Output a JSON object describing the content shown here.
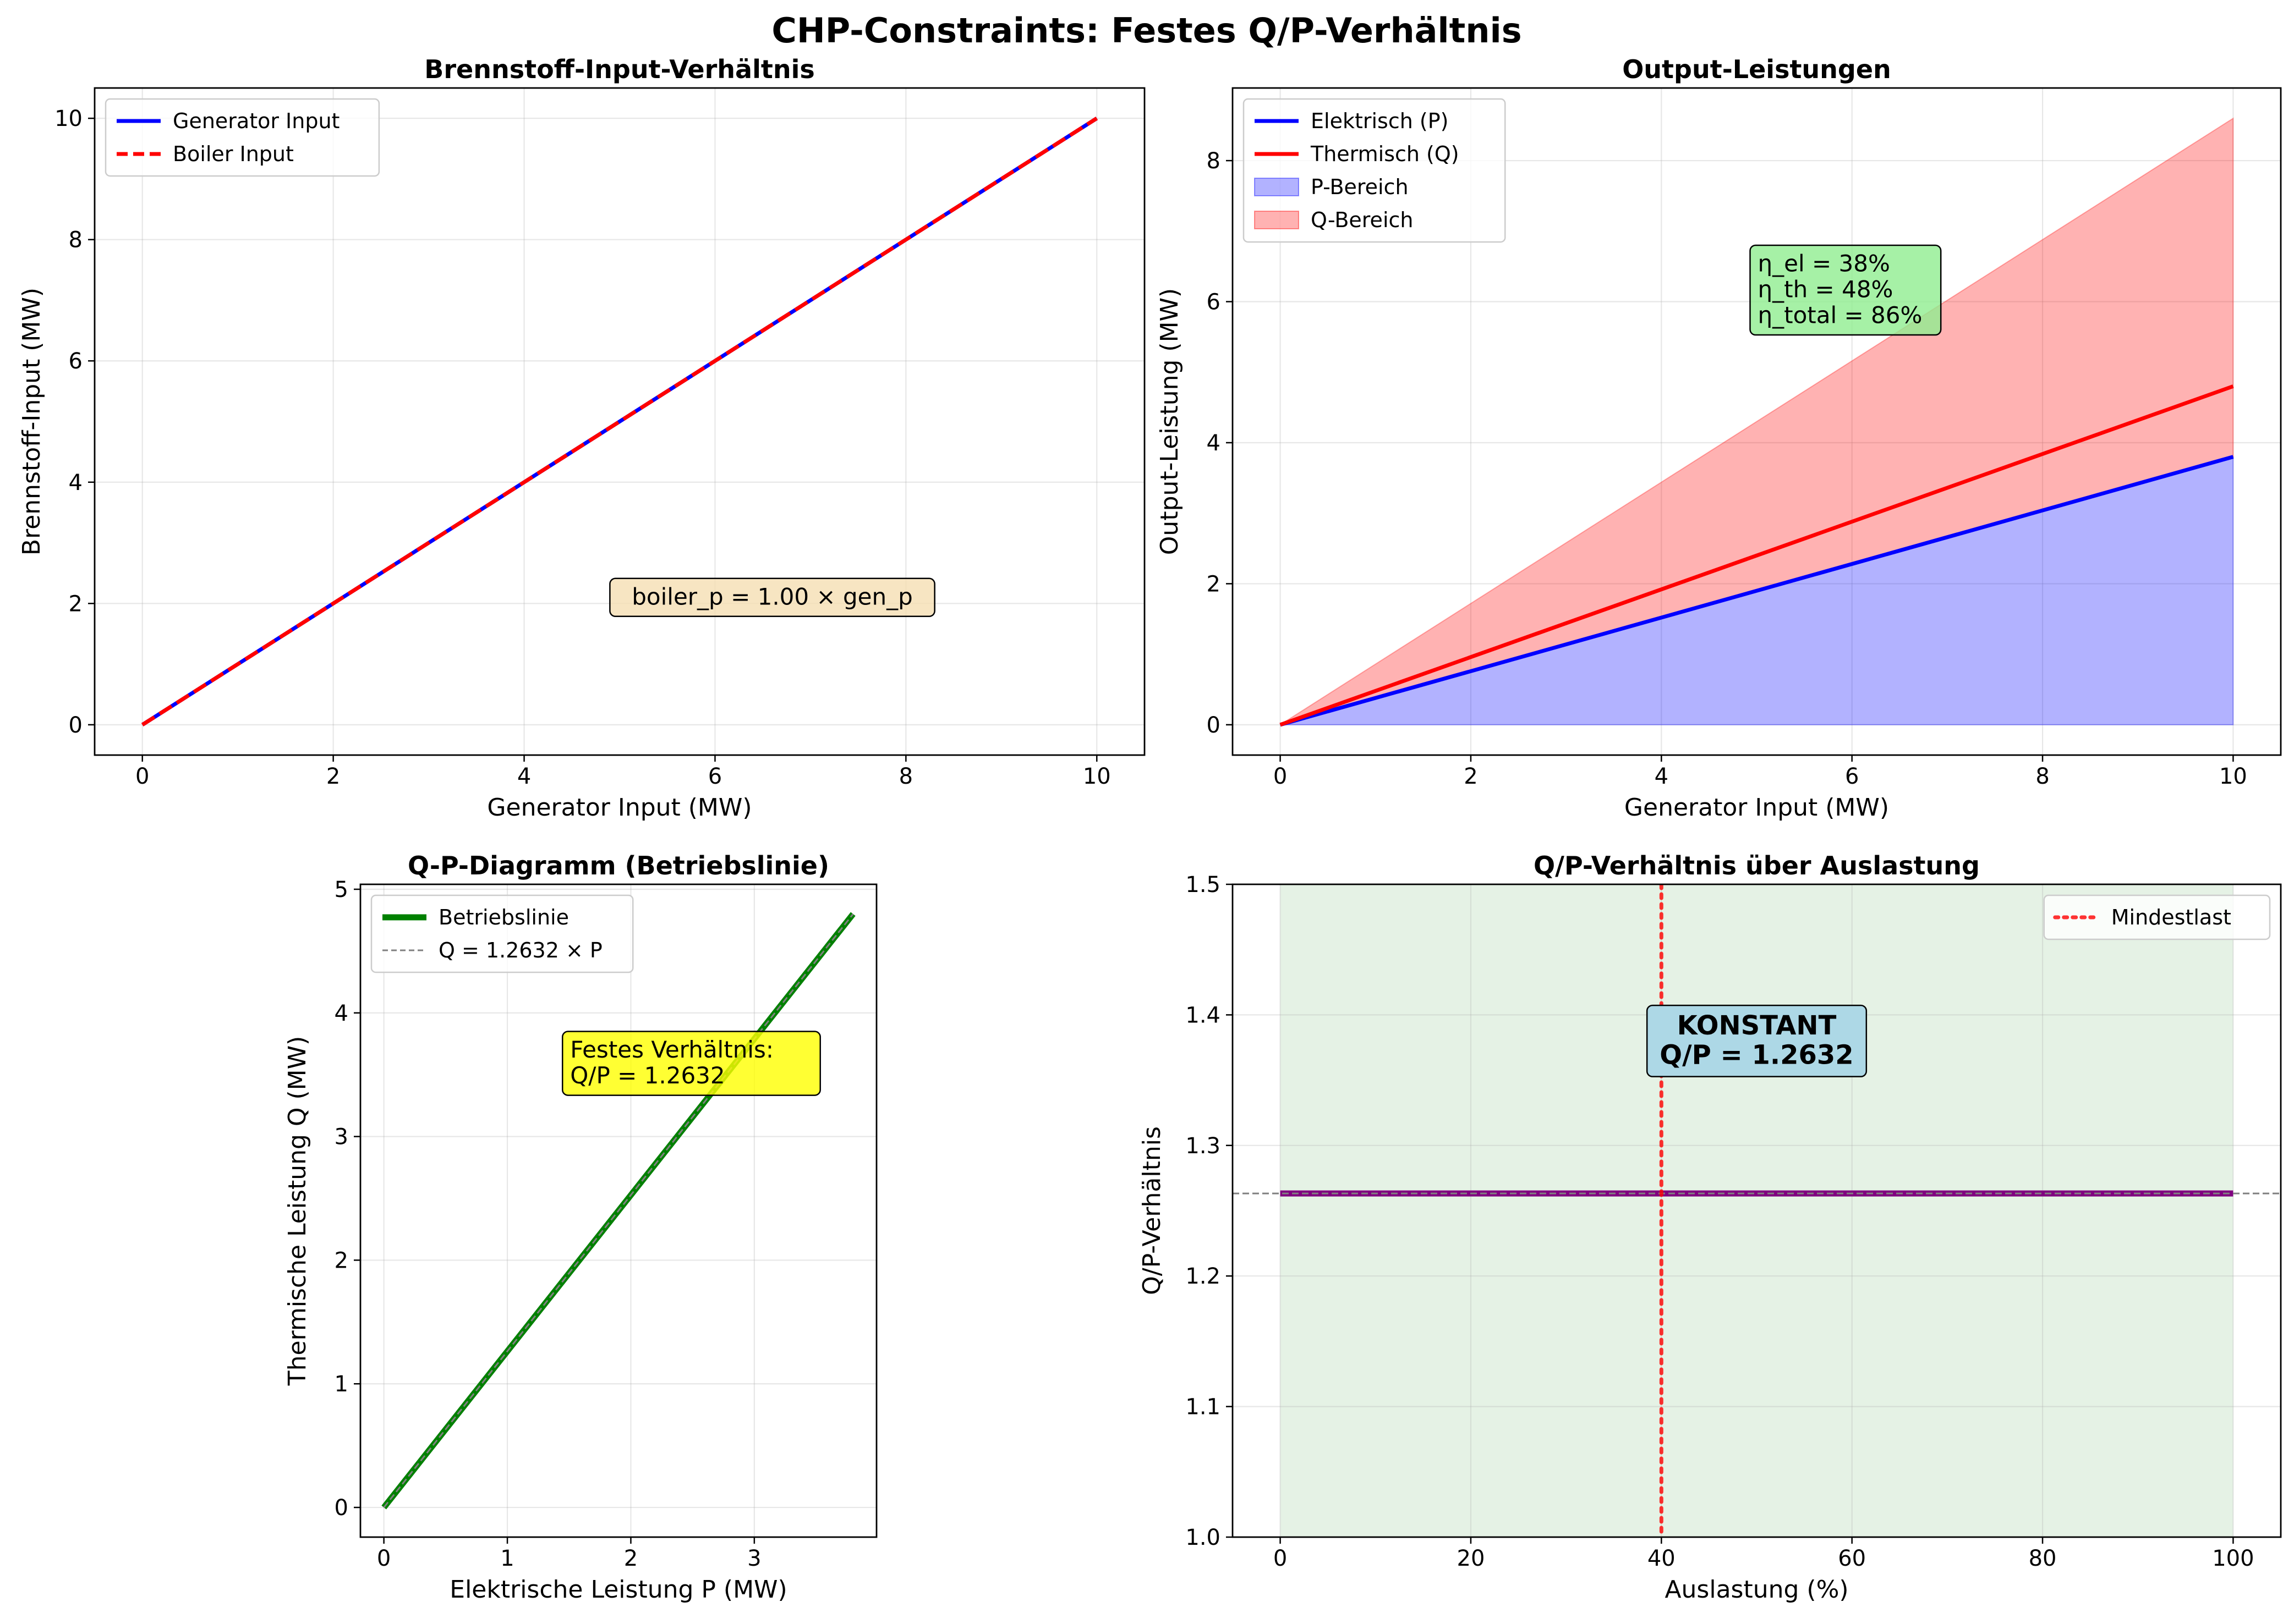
{
  "figure": {
    "suptitle": "CHP-Constraints: Festes Q/P-Verhältnis"
  },
  "chart_data": [
    {
      "id": "brennstoff",
      "type": "line",
      "title": "Brennstoff-Input-Verhältnis",
      "xlabel": "Generator Input (MW)",
      "ylabel": "Brennstoff-Input (MW)",
      "xlim": [
        -0.5,
        10.5
      ],
      "ylim": [
        -0.5,
        10.5
      ],
      "xticks": [
        0,
        2,
        4,
        6,
        8,
        10
      ],
      "yticks": [
        0,
        2,
        4,
        6,
        8,
        10
      ],
      "grid": true,
      "legend": "upper-left",
      "series": [
        {
          "name": "Generator Input",
          "color": "#0000ff",
          "style": "solid",
          "x": [
            0,
            10
          ],
          "y": [
            0,
            10
          ]
        },
        {
          "name": "Boiler Input",
          "color": "#ff0000",
          "style": "dashed",
          "x": [
            0,
            10
          ],
          "y": [
            0,
            10
          ]
        }
      ],
      "annotations": [
        {
          "text": "boiler_p = 1.00 × gen_p",
          "x": 6.6,
          "y": 2.1,
          "bg": "#f5deb3"
        }
      ]
    },
    {
      "id": "output",
      "type": "area",
      "title": "Output-Leistungen",
      "xlabel": "Generator Input (MW)",
      "ylabel": "Output-Leistung (MW)",
      "xlim": [
        -0.5,
        10.5
      ],
      "ylim": [
        -0.43,
        9.03
      ],
      "xticks": [
        0,
        2,
        4,
        6,
        8,
        10
      ],
      "yticks": [
        0,
        2,
        4,
        6,
        8
      ],
      "grid": true,
      "legend": "upper-left",
      "series": [
        {
          "name": "Elektrisch (P)",
          "color": "#0000ff",
          "kind": "line",
          "x": [
            0,
            10
          ],
          "y": [
            0,
            3.8
          ]
        },
        {
          "name": "Thermisch (Q)",
          "color": "#ff0000",
          "kind": "line",
          "x": [
            0,
            10
          ],
          "y": [
            0,
            4.8
          ]
        },
        {
          "name": "P-Bereich",
          "color": "#0000ff",
          "kind": "fill",
          "x": [
            0,
            10
          ],
          "y_low": [
            0,
            0
          ],
          "y_high": [
            0,
            3.8
          ]
        },
        {
          "name": "Q-Bereich",
          "color": "#ff0000",
          "kind": "fill",
          "x": [
            0,
            10
          ],
          "y_low": [
            0,
            3.8
          ],
          "y_high": [
            0,
            8.6
          ]
        }
      ],
      "annotations": [
        {
          "lines": [
            "η_el = 38%",
            "η_th = 48%",
            "η_total = 86%"
          ],
          "x": 5.0,
          "y": 6.8,
          "bg": "#90ee90"
        }
      ]
    },
    {
      "id": "qp",
      "type": "line",
      "title": "Q-P-Diagramm (Betriebslinie)",
      "xlabel": "Elektrische Leistung P (MW)",
      "ylabel": "Thermische Leistung Q (MW)",
      "xlim": [
        -0.19,
        3.99
      ],
      "ylim": [
        -0.24,
        5.04
      ],
      "xticks": [
        0,
        1,
        2,
        3
      ],
      "yticks": [
        0,
        1,
        2,
        3,
        4,
        5
      ],
      "grid": true,
      "legend": "upper-left",
      "series": [
        {
          "name": "Betriebslinie",
          "color": "#008000",
          "style": "solid",
          "x": [
            0,
            3.8
          ],
          "y": [
            0,
            4.8
          ]
        },
        {
          "name": "Q = 1.2632 × P",
          "color": "#808080",
          "style": "dashed",
          "x": [
            0,
            3.8
          ],
          "y": [
            0,
            4.8
          ]
        }
      ],
      "annotations": [
        {
          "lines": [
            "Festes Verhältnis:",
            "Q/P = 1.2632"
          ],
          "x": 1.5,
          "y": 3.85,
          "bg": "#ffff00"
        }
      ]
    },
    {
      "id": "ratio",
      "type": "line",
      "title": "Q/P-Verhältnis über Auslastung",
      "xlabel": "Auslastung (%)",
      "ylabel": "Q/P-Verhältnis",
      "xlim": [
        -5,
        105
      ],
      "ylim": [
        1.0,
        1.5
      ],
      "xticks": [
        0,
        20,
        40,
        60,
        80,
        100
      ],
      "yticks": [
        1.0,
        1.1,
        1.2,
        1.3,
        1.4,
        1.5
      ],
      "grid": true,
      "legend": "upper-right",
      "shade": {
        "x0": 0,
        "x1": 100,
        "color": "#008000"
      },
      "series": [
        {
          "name": "",
          "color": "#800080",
          "style": "solid",
          "x": [
            0,
            100
          ],
          "y": [
            1.2632,
            1.2632
          ]
        },
        {
          "name": "",
          "color": "#808080",
          "style": "hline-dashed",
          "y": 1.2632
        },
        {
          "name": "Mindestlast",
          "color": "#ff0000",
          "style": "vline-dotted",
          "x": 40
        }
      ],
      "annotations": [
        {
          "lines": [
            "KONSTANT",
            "Q/P = 1.2632"
          ],
          "x": 50,
          "y": 1.38,
          "bg": "#add8e6",
          "bold": true
        }
      ]
    }
  ]
}
